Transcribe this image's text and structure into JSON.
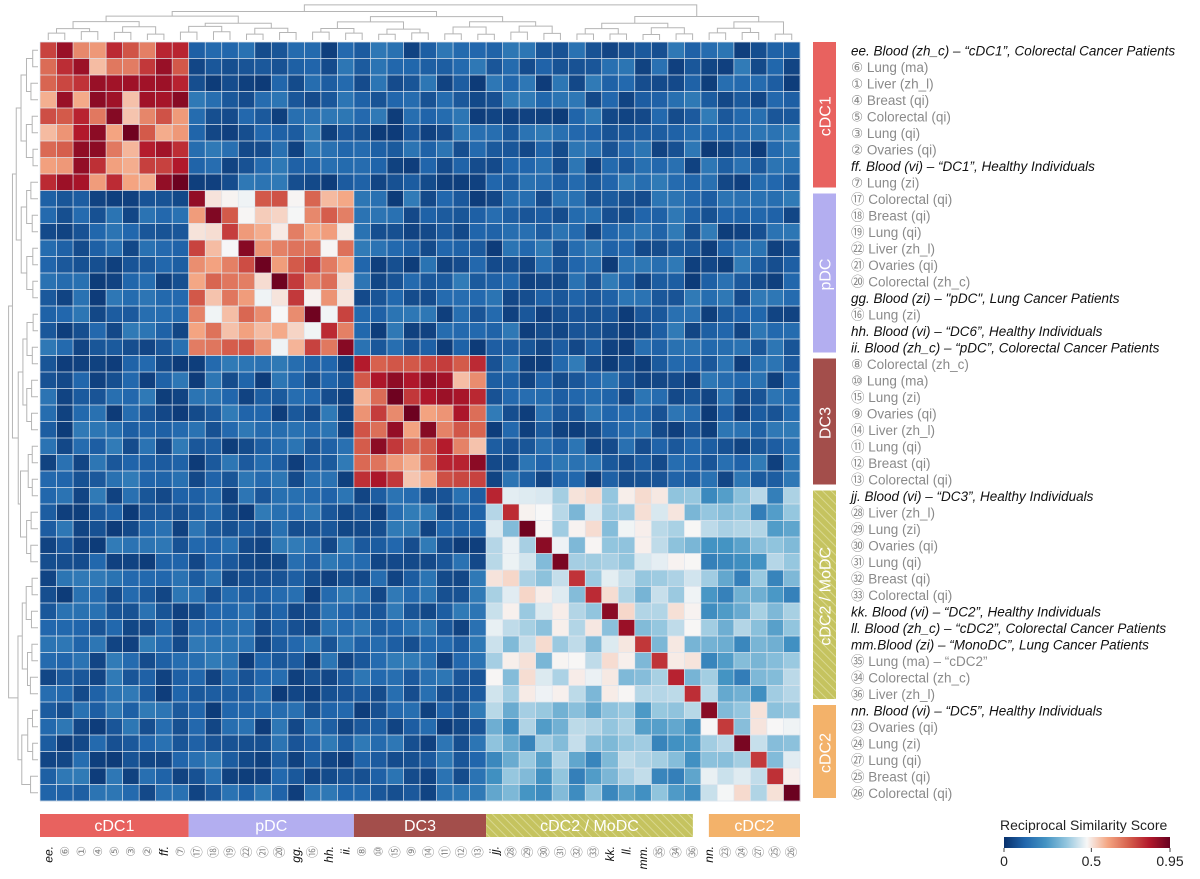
{
  "chart_data": {
    "type": "heatmap",
    "title": "",
    "colorbar": {
      "title": "Reciprocal Similarity Score",
      "min": 0,
      "max": 0.95,
      "ticks": [
        {
          "value": 0,
          "label": "0"
        },
        {
          "value": 0.5,
          "label": "0.5"
        },
        {
          "value": 0.95,
          "label": "0.95"
        }
      ],
      "colors": [
        "#08306b",
        "#2166ac",
        "#4393c3",
        "#92c5de",
        "#f7f7f7",
        "#f4a582",
        "#d6604d",
        "#b2182b",
        "#67001f"
      ]
    },
    "rows": [
      {
        "label": "ee.  Blood (zh_c) – “cDC1”, Colorectal Cancer Patients",
        "kind": "blood",
        "group": 0
      },
      {
        "label": "⑥  Lung (ma)",
        "kind": "tumor",
        "group": 0
      },
      {
        "label": "①  Liver (zh_l)",
        "kind": "tumor",
        "group": 0
      },
      {
        "label": "④  Breast (qi)",
        "kind": "tumor",
        "group": 0
      },
      {
        "label": "⑤  Colorectal (qi)",
        "kind": "tumor",
        "group": 0
      },
      {
        "label": "③  Lung (qi)",
        "kind": "tumor",
        "group": 0
      },
      {
        "label": "②  Ovaries (qi)",
        "kind": "tumor",
        "group": 0
      },
      {
        "label": "ff.  Blood (vi) – “DC1”, Healthy Individuals",
        "kind": "blood",
        "group": 0
      },
      {
        "label": "⑦  Lung (zi)",
        "kind": "tumor",
        "group": 0
      },
      {
        "label": "⑰  Colorectal (qi)",
        "kind": "tumor",
        "group": 1
      },
      {
        "label": "⑱  Breast (qi)",
        "kind": "tumor",
        "group": 1
      },
      {
        "label": "⑲  Lung (qi)",
        "kind": "tumor",
        "group": 1
      },
      {
        "label": "㉒  Liver (zh_l)",
        "kind": "tumor",
        "group": 1
      },
      {
        "label": "㉑  Ovaries (qi)",
        "kind": "tumor",
        "group": 1
      },
      {
        "label": "⑳  Colorectal (zh_c)",
        "kind": "tumor",
        "group": 1
      },
      {
        "label": "gg.  Blood (zi) – \"pDC\", Lung Cancer Patients",
        "kind": "blood",
        "group": 1
      },
      {
        "label": "⑯  Lung (zi)",
        "kind": "tumor",
        "group": 1
      },
      {
        "label": "hh.  Blood (vi) – “DC6”, Healthy Individuals",
        "kind": "blood",
        "group": 1
      },
      {
        "label": "ii.   Blood (zh_c) – “pDC”, Colorectal Cancer Patients",
        "kind": "blood",
        "group": 1
      },
      {
        "label": "⑧  Colorectal (zh_c)",
        "kind": "tumor",
        "group": 2
      },
      {
        "label": "⑩  Lung (ma)",
        "kind": "tumor",
        "group": 2
      },
      {
        "label": "⑮  Lung (zi)",
        "kind": "tumor",
        "group": 2
      },
      {
        "label": "⑨  Ovaries (qi)",
        "kind": "tumor",
        "group": 2
      },
      {
        "label": "⑭  Liver (zh_l)",
        "kind": "tumor",
        "group": 2
      },
      {
        "label": "⑪  Lung (qi)",
        "kind": "tumor",
        "group": 2
      },
      {
        "label": "⑫  Breast (qi)",
        "kind": "tumor",
        "group": 2
      },
      {
        "label": "⑬  Colorectal (qi)",
        "kind": "tumor",
        "group": 2
      },
      {
        "label": "jj.  Blood (vi) – “DC3”, Healthy Individuals",
        "kind": "blood",
        "group": 3
      },
      {
        "label": "㉘  Liver (zh_l)",
        "kind": "tumor",
        "group": 3
      },
      {
        "label": "㉙  Lung (zi)",
        "kind": "tumor",
        "group": 3
      },
      {
        "label": "㉚  Ovaries (qi)",
        "kind": "tumor",
        "group": 3
      },
      {
        "label": "㉛  Lung (qi)",
        "kind": "tumor",
        "group": 3
      },
      {
        "label": "㉜  Breast (qi)",
        "kind": "tumor",
        "group": 3
      },
      {
        "label": "㉝  Colorectal (qi)",
        "kind": "tumor",
        "group": 3
      },
      {
        "label": "kk.  Blood (vi) – “DC2”, Healthy Individuals",
        "kind": "blood",
        "group": 3
      },
      {
        "label": "ll.   Blood (zh_c) – “cDC2”, Colorectal Cancer Patients",
        "kind": "blood",
        "group": 3
      },
      {
        "label": "mm.Blood (zi) – “MonoDC”, Lung Cancer Patients",
        "kind": "blood",
        "group": 3
      },
      {
        "label": "㉟  Lung (ma) – “cDC2”",
        "kind": "tumor",
        "group": 3
      },
      {
        "label": "㉞  Colorectal (zh_c)",
        "kind": "tumor",
        "group": 3
      },
      {
        "label": "㊱  Liver (zh_l)",
        "kind": "tumor",
        "group": 3
      },
      {
        "label": "nn.  Blood (vi) – “DC5”, Healthy Individuals",
        "kind": "blood",
        "group": 4
      },
      {
        "label": "㉓  Ovaries (qi)",
        "kind": "tumor",
        "group": 4
      },
      {
        "label": "㉔  Lung (zi)",
        "kind": "tumor",
        "group": 4
      },
      {
        "label": "㉗  Lung (qi)",
        "kind": "tumor",
        "group": 4
      },
      {
        "label": "㉕  Breast (qi)",
        "kind": "tumor",
        "group": 4
      },
      {
        "label": "㉖  Colorectal (qi)",
        "kind": "tumor",
        "group": 4
      }
    ],
    "columns": [
      {
        "label": "ee.",
        "kind": "blood"
      },
      {
        "label": "⑥",
        "kind": "tumor"
      },
      {
        "label": "①",
        "kind": "tumor"
      },
      {
        "label": "④",
        "kind": "tumor"
      },
      {
        "label": "⑤",
        "kind": "tumor"
      },
      {
        "label": "③",
        "kind": "tumor"
      },
      {
        "label": "②",
        "kind": "tumor"
      },
      {
        "label": "ff.",
        "kind": "blood"
      },
      {
        "label": "⑦",
        "kind": "tumor"
      },
      {
        "label": "⑰",
        "kind": "tumor"
      },
      {
        "label": "⑱",
        "kind": "tumor"
      },
      {
        "label": "⑲",
        "kind": "tumor"
      },
      {
        "label": "㉒",
        "kind": "tumor"
      },
      {
        "label": "㉑",
        "kind": "tumor"
      },
      {
        "label": "⑳",
        "kind": "tumor"
      },
      {
        "label": "gg.",
        "kind": "blood"
      },
      {
        "label": "⑯",
        "kind": "tumor"
      },
      {
        "label": "hh.",
        "kind": "blood"
      },
      {
        "label": "ii.",
        "kind": "blood"
      },
      {
        "label": "⑧",
        "kind": "tumor"
      },
      {
        "label": "⑩",
        "kind": "tumor"
      },
      {
        "label": "⑮",
        "kind": "tumor"
      },
      {
        "label": "⑨",
        "kind": "tumor"
      },
      {
        "label": "⑭",
        "kind": "tumor"
      },
      {
        "label": "⑪",
        "kind": "tumor"
      },
      {
        "label": "⑫",
        "kind": "tumor"
      },
      {
        "label": "⑬",
        "kind": "tumor"
      },
      {
        "label": "jj.",
        "kind": "blood"
      },
      {
        "label": "㉘",
        "kind": "tumor"
      },
      {
        "label": "㉙",
        "kind": "tumor"
      },
      {
        "label": "㉚",
        "kind": "tumor"
      },
      {
        "label": "㉛",
        "kind": "tumor"
      },
      {
        "label": "㉜",
        "kind": "tumor"
      },
      {
        "label": "㉝",
        "kind": "tumor"
      },
      {
        "label": "kk.",
        "kind": "blood"
      },
      {
        "label": "ll.",
        "kind": "blood"
      },
      {
        "label": "mm.",
        "kind": "blood"
      },
      {
        "label": "㉟",
        "kind": "tumor"
      },
      {
        "label": "㉞",
        "kind": "tumor"
      },
      {
        "label": "㊱",
        "kind": "tumor"
      },
      {
        "label": "nn.",
        "kind": "blood"
      },
      {
        "label": "㉓",
        "kind": "tumor"
      },
      {
        "label": "㉔",
        "kind": "tumor"
      },
      {
        "label": "㉗",
        "kind": "tumor"
      },
      {
        "label": "㉕",
        "kind": "tumor"
      },
      {
        "label": "㉖",
        "kind": "tumor"
      }
    ],
    "groups": [
      {
        "name": "cDC1",
        "color": "#e8625f",
        "start": 0,
        "end": 8
      },
      {
        "name": "pDC",
        "color": "#b3aef0",
        "start": 9,
        "end": 18
      },
      {
        "name": "DC3",
        "color": "#a34e4b",
        "start": 19,
        "end": 26
      },
      {
        "name": "cDC2 / MoDC",
        "color": "#c5c35f",
        "start": 27,
        "end": 39,
        "hatched": true
      },
      {
        "name": "cDC2",
        "color": "#f3b26a",
        "start": 40,
        "end": 45
      }
    ],
    "values": {
      "within_group": [
        {
          "group": "cDC1",
          "approx": 0.72
        },
        {
          "group": "pDC",
          "approx": 0.62
        },
        {
          "group": "DC3",
          "approx": 0.72
        },
        {
          "group": "cDC2 / MoDC",
          "approx": 0.42
        },
        {
          "group": "cDC2",
          "approx": 0.42
        }
      ],
      "between_groups_approx": 0.08,
      "cross_cDC2_MoDC_cDC2_approx": 0.3,
      "diagonal_max": 0.95
    }
  }
}
